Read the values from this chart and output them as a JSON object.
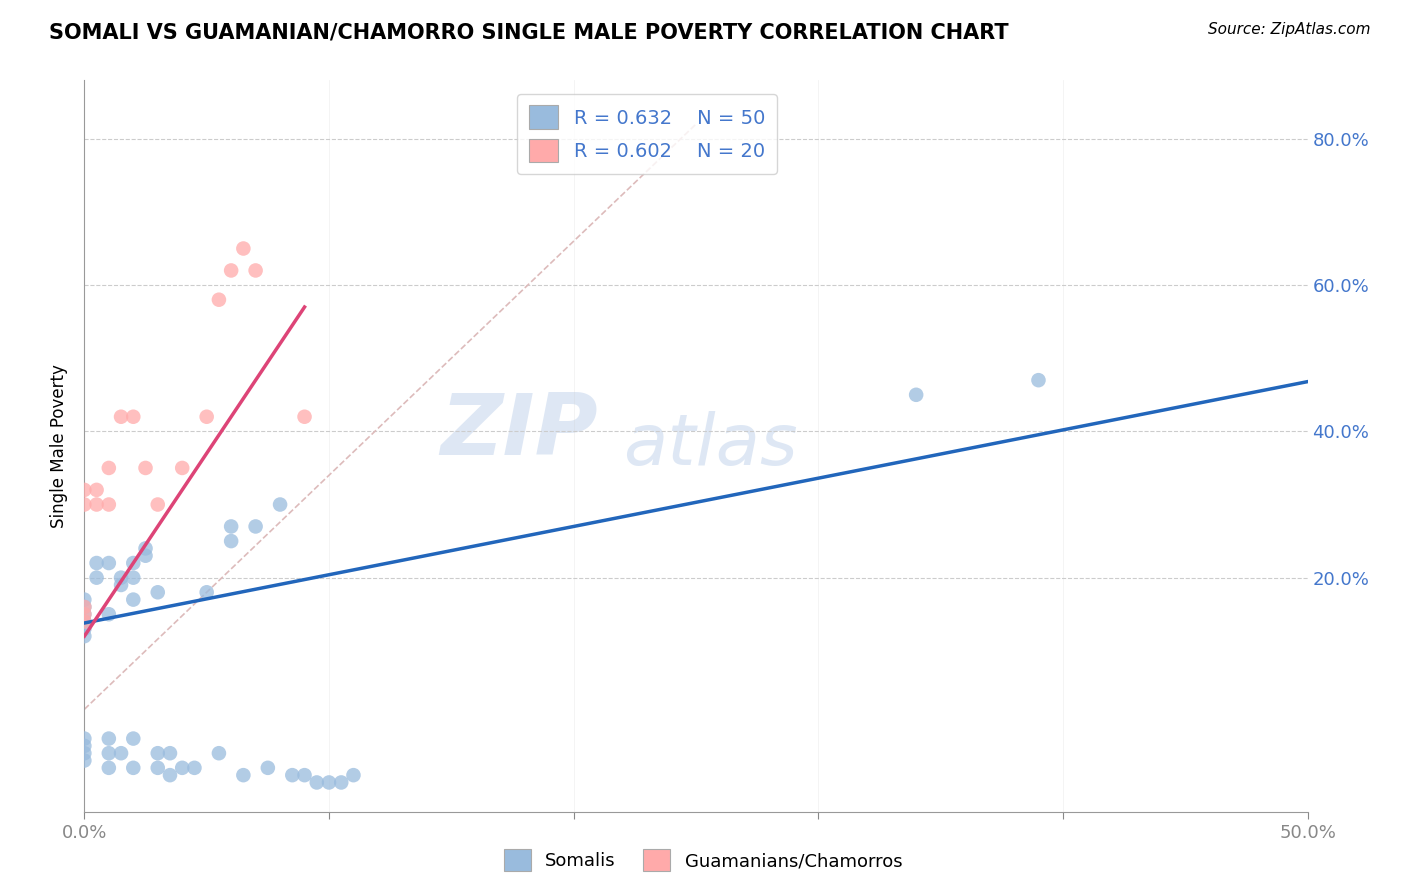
{
  "title": "SOMALI VS GUAMANIAN/CHAMORRO SINGLE MALE POVERTY CORRELATION CHART",
  "source": "Source: ZipAtlas.com",
  "ylabel": "Single Male Poverty",
  "xlim": [
    0.0,
    0.5
  ],
  "ylim": [
    -0.12,
    0.88
  ],
  "legend_blue_r": "R = 0.632",
  "legend_blue_n": "N = 50",
  "legend_pink_r": "R = 0.602",
  "legend_pink_n": "N = 20",
  "blue_color": "#99BBDD",
  "pink_color": "#FFAAAA",
  "blue_line_color": "#2266BB",
  "pink_line_color": "#DD4477",
  "dashed_line_color": "#DDBBBB",
  "watermark_zip": "ZIP",
  "watermark_atlas": "atlas",
  "somali_x": [
    0.0,
    0.0,
    0.0,
    0.0,
    0.0,
    0.0,
    0.0,
    0.0,
    0.0,
    0.0,
    0.005,
    0.005,
    0.01,
    0.01,
    0.01,
    0.01,
    0.01,
    0.015,
    0.015,
    0.015,
    0.02,
    0.02,
    0.02,
    0.02,
    0.02,
    0.025,
    0.025,
    0.03,
    0.03,
    0.03,
    0.035,
    0.035,
    0.04,
    0.045,
    0.05,
    0.055,
    0.06,
    0.06,
    0.065,
    0.07,
    0.075,
    0.08,
    0.085,
    0.09,
    0.095,
    0.1,
    0.105,
    0.11,
    0.34,
    0.39
  ],
  "somali_y": [
    0.15,
    0.14,
    0.13,
    0.12,
    0.16,
    0.17,
    -0.02,
    -0.04,
    -0.03,
    -0.05,
    0.2,
    0.22,
    0.15,
    0.22,
    -0.02,
    -0.04,
    -0.06,
    0.2,
    0.19,
    -0.04,
    0.22,
    0.2,
    0.17,
    -0.02,
    -0.06,
    0.23,
    0.24,
    0.18,
    -0.04,
    -0.06,
    -0.04,
    -0.07,
    -0.06,
    -0.06,
    0.18,
    -0.04,
    0.27,
    0.25,
    -0.07,
    0.27,
    -0.06,
    0.3,
    -0.07,
    -0.07,
    -0.08,
    -0.08,
    -0.08,
    -0.07,
    0.45,
    0.47
  ],
  "guam_x": [
    0.0,
    0.0,
    0.0,
    0.0,
    0.0,
    0.005,
    0.005,
    0.01,
    0.01,
    0.015,
    0.02,
    0.025,
    0.03,
    0.04,
    0.05,
    0.055,
    0.06,
    0.065,
    0.07,
    0.09
  ],
  "guam_y": [
    0.14,
    0.15,
    0.16,
    0.3,
    0.32,
    0.3,
    0.32,
    0.3,
    0.35,
    0.42,
    0.42,
    0.35,
    0.3,
    0.35,
    0.42,
    0.58,
    0.62,
    0.65,
    0.62,
    0.42
  ],
  "blue_line_x": [
    0.0,
    0.5
  ],
  "blue_line_y": [
    0.138,
    0.468
  ],
  "pink_line_x": [
    0.0,
    0.09
  ],
  "pink_line_y": [
    0.12,
    0.57
  ],
  "dashed_line_x": [
    0.0,
    0.25
  ],
  "dashed_line_y": [
    0.02,
    0.82
  ],
  "ytick_vals": [
    0.0,
    0.2,
    0.4,
    0.6,
    0.8
  ],
  "ytick_labels": [
    "",
    "20.0%",
    "40.0%",
    "60.0%",
    "80.0%"
  ],
  "xtick_vals": [
    0.0,
    0.1,
    0.2,
    0.3,
    0.4,
    0.5
  ],
  "xtick_labels": [
    "0.0%",
    "",
    "",
    "",
    "",
    "50.0%"
  ]
}
